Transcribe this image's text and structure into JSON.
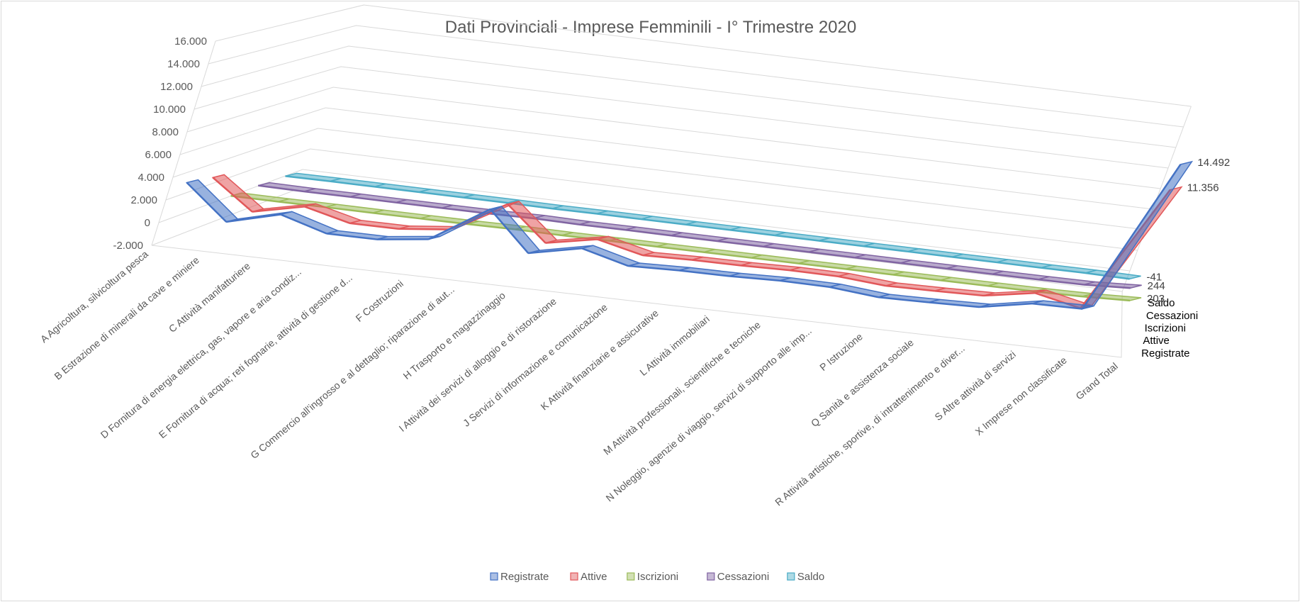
{
  "chart_data": {
    "type": "line",
    "subtype": "3d-line",
    "title": "Dati Provinciali - Imprese Femminili - I° Trimestre 2020",
    "ylim": [
      -2000,
      16000
    ],
    "y_ticks": [
      "16.000",
      "14.000",
      "12.000",
      "10.000",
      "8.000",
      "6.000",
      "4.000",
      "2.000",
      "0",
      "-2.000"
    ],
    "categories": [
      "A Agricoltura, silvicoltura pesca",
      "B Estrazione di minerali da cave e miniere",
      "C Attività manifatturiere",
      "D Fornitura di energia elettrica, gas, vapore e aria condiz...",
      "E Fornitura di acqua; reti fognarie, attività di gestione d...",
      "F Costruzioni",
      "G Commercio all'ingrosso e al dettaglio; riparazione di aut...",
      "H Trasporto e magazzinaggio",
      "I Attività dei servizi di alloggio e di ristorazione",
      "J Servizi di informazione e comunicazione",
      "K Attività finanziarie e assicurative",
      "L Attività immobiliari",
      "M Attività professionali, scientifiche e tecniche",
      "N Noleggio, agenzie di viaggio, servizi di supporto alle imp...",
      "P Istruzione",
      "Q Sanità e assistenza sociale",
      "R Attività artistiche, sportive, di intrattenimento e diver...",
      "S Altre attività di servizi",
      "X Imprese non classificate",
      "Grand Total"
    ],
    "series": [
      {
        "name": "Registrate",
        "color": "#4472c4",
        "values": [
          3000,
          20,
          1200,
          20,
          20,
          550,
          3750,
          350,
          1300,
          250,
          370,
          380,
          500,
          450,
          60,
          120,
          220,
          1050,
          1100,
          14492
        ]
      },
      {
        "name": "Attive",
        "color": "#e15759",
        "values": [
          2600,
          15,
          1000,
          15,
          15,
          480,
          3300,
          300,
          1150,
          220,
          320,
          330,
          420,
          380,
          50,
          100,
          190,
          950,
          80,
          11356
        ]
      },
      {
        "name": "Iscrizioni",
        "color": "#9bbb59",
        "values": [
          15,
          0,
          10,
          0,
          0,
          6,
          40,
          3,
          12,
          3,
          4,
          4,
          6,
          5,
          1,
          1,
          3,
          8,
          60,
          203
        ]
      },
      {
        "name": "Cessazioni",
        "color": "#8064a2",
        "values": [
          40,
          0,
          14,
          0,
          0,
          8,
          70,
          4,
          18,
          4,
          5,
          4,
          8,
          6,
          1,
          2,
          3,
          12,
          45,
          244
        ]
      },
      {
        "name": "Saldo",
        "color": "#4bacc6",
        "values": [
          -25,
          0,
          -4,
          0,
          0,
          -2,
          -30,
          -1,
          -6,
          -1,
          -1,
          0,
          -2,
          -1,
          0,
          -1,
          0,
          -4,
          15,
          -41
        ]
      }
    ],
    "data_labels": [
      {
        "series": "Registrate",
        "category": "Grand Total",
        "text": "14.492"
      },
      {
        "series": "Attive",
        "category": "Grand Total",
        "text": "11.356"
      },
      {
        "series": "Saldo",
        "category": "Grand Total",
        "text": "-41"
      },
      {
        "series": "Cessazioni",
        "category": "Grand Total",
        "text": "244"
      },
      {
        "series": "Iscrizioni",
        "category": "Grand Total",
        "text": "203"
      }
    ],
    "legend": {
      "position": "bottom",
      "entries": [
        "Registrate",
        "Attive",
        "Iscrizioni",
        "Cessazioni",
        "Saldo"
      ]
    },
    "grid": true
  }
}
